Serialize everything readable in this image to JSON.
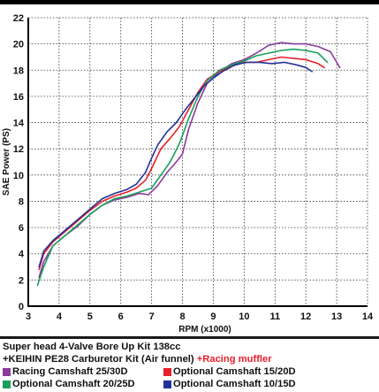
{
  "chart_data": {
    "type": "line",
    "title": "",
    "xlabel": "RPM (x1000)",
    "ylabel": "SAE Power (PS)",
    "xlim": [
      3,
      14
    ],
    "ylim": [
      0,
      22
    ],
    "x_ticks": [
      "3",
      "4",
      "5",
      "6",
      "7",
      "8",
      "9",
      "10",
      "11",
      "12",
      "13",
      "14"
    ],
    "y_ticks": [
      "0",
      "2",
      "4",
      "6",
      "8",
      "10",
      "12",
      "14",
      "16",
      "18",
      "20",
      "22"
    ],
    "grid": true,
    "series": [
      {
        "name": "Racing Camshaft 25/30D",
        "color": "#8b3a9e",
        "points": [
          [
            3.35,
            2.2
          ],
          [
            3.5,
            3.4
          ],
          [
            3.8,
            4.6
          ],
          [
            4.2,
            5.4
          ],
          [
            4.6,
            6.1
          ],
          [
            5.0,
            7.0
          ],
          [
            5.4,
            7.7
          ],
          [
            5.8,
            8.1
          ],
          [
            6.2,
            8.3
          ],
          [
            6.6,
            8.6
          ],
          [
            6.9,
            8.5
          ],
          [
            7.2,
            9.2
          ],
          [
            7.5,
            10.2
          ],
          [
            7.8,
            11.0
          ],
          [
            8.0,
            11.6
          ],
          [
            8.2,
            13.5
          ],
          [
            8.5,
            15.5
          ],
          [
            8.8,
            17.0
          ],
          [
            9.2,
            17.9
          ],
          [
            9.6,
            18.5
          ],
          [
            10.0,
            18.8
          ],
          [
            10.4,
            19.3
          ],
          [
            10.8,
            19.9
          ],
          [
            11.2,
            20.1
          ],
          [
            11.6,
            20.0
          ],
          [
            12.0,
            20.0
          ],
          [
            12.4,
            19.8
          ],
          [
            12.8,
            19.4
          ],
          [
            13.1,
            18.2
          ]
        ]
      },
      {
        "name": "Optional Camshaft 15/20D",
        "color": "#e8202a",
        "points": [
          [
            3.35,
            2.8
          ],
          [
            3.5,
            4.0
          ],
          [
            3.8,
            4.9
          ],
          [
            4.2,
            5.7
          ],
          [
            4.6,
            6.5
          ],
          [
            5.0,
            7.3
          ],
          [
            5.4,
            8.0
          ],
          [
            5.8,
            8.4
          ],
          [
            6.2,
            8.7
          ],
          [
            6.5,
            9.0
          ],
          [
            6.8,
            9.6
          ],
          [
            7.0,
            10.5
          ],
          [
            7.3,
            12.0
          ],
          [
            7.6,
            12.8
          ],
          [
            7.9,
            13.7
          ],
          [
            8.2,
            15.0
          ],
          [
            8.5,
            16.3
          ],
          [
            8.8,
            17.3
          ],
          [
            9.2,
            17.9
          ],
          [
            9.6,
            18.3
          ],
          [
            10.0,
            18.6
          ],
          [
            10.4,
            18.6
          ],
          [
            10.8,
            18.8
          ],
          [
            11.2,
            19.0
          ],
          [
            11.6,
            18.9
          ],
          [
            12.0,
            18.8
          ],
          [
            12.4,
            18.5
          ],
          [
            12.6,
            18.2
          ]
        ]
      },
      {
        "name": "Optional Camshaft 20/25D",
        "color": "#18a05a",
        "points": [
          [
            3.3,
            1.6
          ],
          [
            3.5,
            3.0
          ],
          [
            3.8,
            4.6
          ],
          [
            4.2,
            5.4
          ],
          [
            4.6,
            6.2
          ],
          [
            5.0,
            7.0
          ],
          [
            5.4,
            7.7
          ],
          [
            5.8,
            8.2
          ],
          [
            6.2,
            8.4
          ],
          [
            6.6,
            8.7
          ],
          [
            7.0,
            9.0
          ],
          [
            7.3,
            10.0
          ],
          [
            7.6,
            11.0
          ],
          [
            7.9,
            12.4
          ],
          [
            8.2,
            14.3
          ],
          [
            8.5,
            16.0
          ],
          [
            8.8,
            17.2
          ],
          [
            9.2,
            18.0
          ],
          [
            9.6,
            18.4
          ],
          [
            10.0,
            18.7
          ],
          [
            10.4,
            19.1
          ],
          [
            10.8,
            19.3
          ],
          [
            11.2,
            19.5
          ],
          [
            11.6,
            19.6
          ],
          [
            12.0,
            19.5
          ],
          [
            12.4,
            19.3
          ],
          [
            12.7,
            18.6
          ]
        ]
      },
      {
        "name": "Optional Camshaft 10/15D",
        "color": "#23329a",
        "points": [
          [
            3.35,
            3.0
          ],
          [
            3.5,
            4.2
          ],
          [
            3.8,
            5.0
          ],
          [
            4.2,
            5.8
          ],
          [
            4.6,
            6.6
          ],
          [
            5.0,
            7.4
          ],
          [
            5.4,
            8.2
          ],
          [
            5.8,
            8.6
          ],
          [
            6.2,
            8.9
          ],
          [
            6.5,
            9.3
          ],
          [
            6.8,
            10.2
          ],
          [
            7.0,
            11.3
          ],
          [
            7.2,
            12.3
          ],
          [
            7.5,
            13.3
          ],
          [
            7.8,
            14.0
          ],
          [
            8.1,
            15.0
          ],
          [
            8.4,
            15.9
          ],
          [
            8.7,
            16.8
          ],
          [
            9.0,
            17.4
          ],
          [
            9.3,
            17.9
          ],
          [
            9.7,
            18.4
          ],
          [
            10.1,
            18.6
          ],
          [
            10.5,
            18.6
          ],
          [
            10.9,
            18.5
          ],
          [
            11.3,
            18.6
          ],
          [
            11.7,
            18.4
          ],
          [
            12.0,
            18.2
          ],
          [
            12.2,
            17.9
          ]
        ]
      }
    ]
  },
  "caption": {
    "line1": "Super head 4-Valve Bore Up Kit 138cc",
    "line2_main": "+KEIHIN PE28 Carburetor Kit (Air funnel)",
    "line2_red": " +Racing muffler",
    "line2_red_color": "#e8202a"
  },
  "legend": [
    {
      "label": "Racing Camshaft 25/30D",
      "color": "#8b3a9e"
    },
    {
      "label": "Optional Camshaft 15/20D",
      "color": "#e8202a"
    },
    {
      "label": "Optional Camshaft 20/25D",
      "color": "#18a05a"
    },
    {
      "label": "Optional Camshaft 10/15D",
      "color": "#23329a"
    }
  ]
}
